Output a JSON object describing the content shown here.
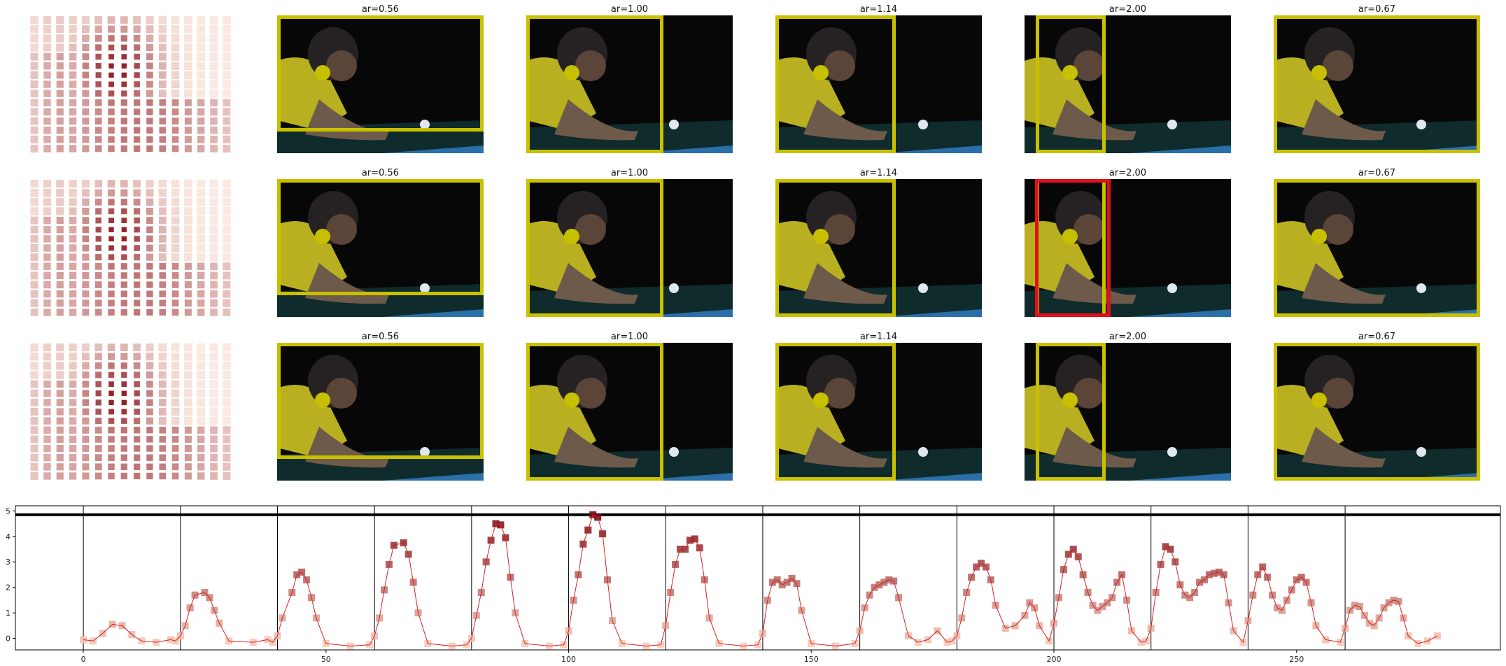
{
  "figure": {
    "rows": [
      {
        "titles": [
          "ar=0.56",
          "ar=1.00",
          "ar=1.14",
          "ar=2.00",
          "ar=0.67"
        ],
        "red_box_panel": null
      },
      {
        "titles": [
          "ar=0.56",
          "ar=1.00",
          "ar=1.14",
          "ar=2.00",
          "ar=0.67"
        ],
        "red_box_panel": 3
      },
      {
        "titles": [
          "ar=0.56",
          "ar=1.00",
          "ar=1.14",
          "ar=2.00",
          "ar=0.67"
        ],
        "red_box_panel": null
      }
    ],
    "colors": {
      "box": "#c9c000",
      "red_box": "#e0101a",
      "dot": "#c6c000",
      "line": "#d62020",
      "marker_light": "#fcd2c0",
      "marker_dark": "#7a0a14",
      "heatmap_light": "#fbe8e0",
      "heatmap_dark": "#8c1a22"
    }
  },
  "chart_data": {
    "type": "line",
    "x_ticks": [
      0,
      50,
      100,
      150,
      200,
      250
    ],
    "y_ticks": [
      0,
      1,
      2,
      3,
      4,
      5
    ],
    "xlim": [
      -14,
      292
    ],
    "ylim": [
      -0.45,
      5.2
    ],
    "horizontal_line_y": 4.85,
    "segment_boundaries": [
      0,
      20,
      40,
      60,
      80,
      100,
      120,
      140,
      160,
      180,
      200,
      220,
      240,
      260
    ],
    "series": [
      {
        "points": [
          [
            0,
            -0.05
          ],
          [
            2,
            -0.1
          ],
          [
            4,
            0.2
          ],
          [
            6,
            0.55
          ],
          [
            8,
            0.5
          ],
          [
            10,
            0.15
          ],
          [
            12,
            -0.1
          ],
          [
            15,
            -0.15
          ],
          [
            18,
            -0.05
          ],
          [
            19,
            -0.1
          ],
          [
            20,
            0.1
          ],
          [
            21,
            0.5
          ],
          [
            22,
            1.2
          ],
          [
            23,
            1.7
          ],
          [
            25,
            1.8
          ],
          [
            26,
            1.6
          ],
          [
            27,
            1.1
          ],
          [
            28,
            0.6
          ],
          [
            30,
            -0.1
          ],
          [
            35,
            -0.15
          ],
          [
            38,
            -0.05
          ],
          [
            39,
            -0.15
          ],
          [
            40,
            0.1
          ],
          [
            41,
            0.8
          ],
          [
            43,
            1.8
          ],
          [
            44,
            2.5
          ],
          [
            45,
            2.6
          ],
          [
            46,
            2.3
          ],
          [
            47,
            1.6
          ],
          [
            48,
            0.8
          ],
          [
            50,
            -0.2
          ],
          [
            55,
            -0.3
          ],
          [
            59,
            -0.25
          ],
          [
            60,
            0.1
          ],
          [
            61,
            0.8
          ],
          [
            62,
            1.9
          ],
          [
            63,
            2.9
          ],
          [
            64,
            3.65
          ],
          [
            66,
            3.75
          ],
          [
            67,
            3.3
          ],
          [
            68,
            2.2
          ],
          [
            69,
            1.0
          ],
          [
            71,
            -0.2
          ],
          [
            76,
            -0.3
          ],
          [
            79,
            -0.25
          ],
          [
            80,
            0.0
          ],
          [
            81,
            0.9
          ],
          [
            82,
            1.8
          ],
          [
            83,
            3.0
          ],
          [
            84,
            3.85
          ],
          [
            85,
            4.5
          ],
          [
            86,
            4.45
          ],
          [
            87,
            3.95
          ],
          [
            88,
            2.4
          ],
          [
            89,
            1.0
          ],
          [
            91,
            -0.2
          ],
          [
            96,
            -0.3
          ],
          [
            99,
            -0.25
          ],
          [
            100,
            0.3
          ],
          [
            101,
            1.5
          ],
          [
            102,
            2.5
          ],
          [
            103,
            3.7
          ],
          [
            104,
            4.25
          ],
          [
            105,
            4.85
          ],
          [
            106,
            4.75
          ],
          [
            107,
            4.1
          ],
          [
            108,
            2.3
          ],
          [
            109,
            0.7
          ],
          [
            111,
            -0.2
          ],
          [
            116,
            -0.3
          ],
          [
            119,
            -0.25
          ],
          [
            120,
            0.5
          ],
          [
            121,
            1.8
          ],
          [
            122,
            2.9
          ],
          [
            123,
            3.5
          ],
          [
            124,
            3.5
          ],
          [
            125,
            3.85
          ],
          [
            126,
            3.9
          ],
          [
            127,
            3.55
          ],
          [
            128,
            2.3
          ],
          [
            129,
            0.8
          ],
          [
            131,
            -0.2
          ],
          [
            136,
            -0.3
          ],
          [
            139,
            -0.25
          ],
          [
            140,
            0.2
          ],
          [
            141,
            1.5
          ],
          [
            142,
            2.2
          ],
          [
            143,
            2.3
          ],
          [
            144,
            2.1
          ],
          [
            145,
            2.2
          ],
          [
            146,
            2.35
          ],
          [
            147,
            2.15
          ],
          [
            148,
            1.1
          ],
          [
            150,
            -0.2
          ],
          [
            155,
            -0.3
          ],
          [
            159,
            -0.2
          ],
          [
            160,
            0.3
          ],
          [
            161,
            1.2
          ],
          [
            162,
            1.7
          ],
          [
            163,
            2.0
          ],
          [
            164,
            2.1
          ],
          [
            165,
            2.2
          ],
          [
            166,
            2.3
          ],
          [
            167,
            2.25
          ],
          [
            168,
            1.6
          ],
          [
            170,
            0.1
          ],
          [
            172,
            -0.15
          ],
          [
            174,
            -0.05
          ],
          [
            176,
            0.3
          ],
          [
            178,
            -0.15
          ],
          [
            179,
            -0.1
          ],
          [
            180,
            0.1
          ],
          [
            181,
            0.8
          ],
          [
            182,
            1.8
          ],
          [
            183,
            2.4
          ],
          [
            184,
            2.8
          ],
          [
            185,
            2.95
          ],
          [
            186,
            2.8
          ],
          [
            187,
            2.3
          ],
          [
            188,
            1.3
          ],
          [
            190,
            0.4
          ],
          [
            192,
            0.5
          ],
          [
            194,
            0.9
          ],
          [
            195,
            1.4
          ],
          [
            196,
            1.2
          ],
          [
            197,
            0.5
          ],
          [
            199,
            -0.1
          ],
          [
            200,
            0.6
          ],
          [
            201,
            1.6
          ],
          [
            202,
            2.7
          ],
          [
            203,
            3.3
          ],
          [
            204,
            3.5
          ],
          [
            205,
            3.2
          ],
          [
            206,
            2.5
          ],
          [
            207,
            1.8
          ],
          [
            208,
            1.3
          ],
          [
            209,
            1.1
          ],
          [
            210,
            1.25
          ],
          [
            211,
            1.4
          ],
          [
            212,
            1.6
          ],
          [
            213,
            2.2
          ],
          [
            214,
            2.5
          ],
          [
            215,
            1.5
          ],
          [
            216,
            0.3
          ],
          [
            218,
            -0.15
          ],
          [
            219,
            -0.1
          ],
          [
            220,
            0.4
          ],
          [
            221,
            1.8
          ],
          [
            222,
            2.9
          ],
          [
            223,
            3.6
          ],
          [
            224,
            3.5
          ],
          [
            225,
            3.0
          ],
          [
            226,
            2.1
          ],
          [
            227,
            1.7
          ],
          [
            228,
            1.6
          ],
          [
            229,
            1.8
          ],
          [
            230,
            2.2
          ],
          [
            231,
            2.3
          ],
          [
            232,
            2.5
          ],
          [
            233,
            2.55
          ],
          [
            234,
            2.6
          ],
          [
            235,
            2.5
          ],
          [
            236,
            1.4
          ],
          [
            237,
            0.3
          ],
          [
            239,
            -0.15
          ],
          [
            240,
            0.7
          ],
          [
            241,
            1.7
          ],
          [
            242,
            2.5
          ],
          [
            243,
            2.8
          ],
          [
            244,
            2.4
          ],
          [
            245,
            1.7
          ],
          [
            246,
            1.2
          ],
          [
            247,
            1.1
          ],
          [
            248,
            1.5
          ],
          [
            249,
            1.9
          ],
          [
            250,
            2.3
          ],
          [
            251,
            2.4
          ],
          [
            252,
            2.2
          ],
          [
            253,
            1.4
          ],
          [
            254,
            0.5
          ],
          [
            256,
            -0.05
          ],
          [
            259,
            -0.15
          ],
          [
            260,
            0.4
          ],
          [
            261,
            1.1
          ],
          [
            262,
            1.3
          ],
          [
            263,
            1.25
          ],
          [
            264,
            0.9
          ],
          [
            265,
            0.6
          ],
          [
            266,
            0.5
          ],
          [
            267,
            0.8
          ],
          [
            268,
            1.2
          ],
          [
            269,
            1.4
          ],
          [
            270,
            1.5
          ],
          [
            271,
            1.45
          ],
          [
            272,
            0.8
          ],
          [
            273,
            0.1
          ],
          [
            275,
            -0.2
          ],
          [
            277,
            -0.1
          ],
          [
            279,
            0.1
          ]
        ]
      }
    ]
  }
}
